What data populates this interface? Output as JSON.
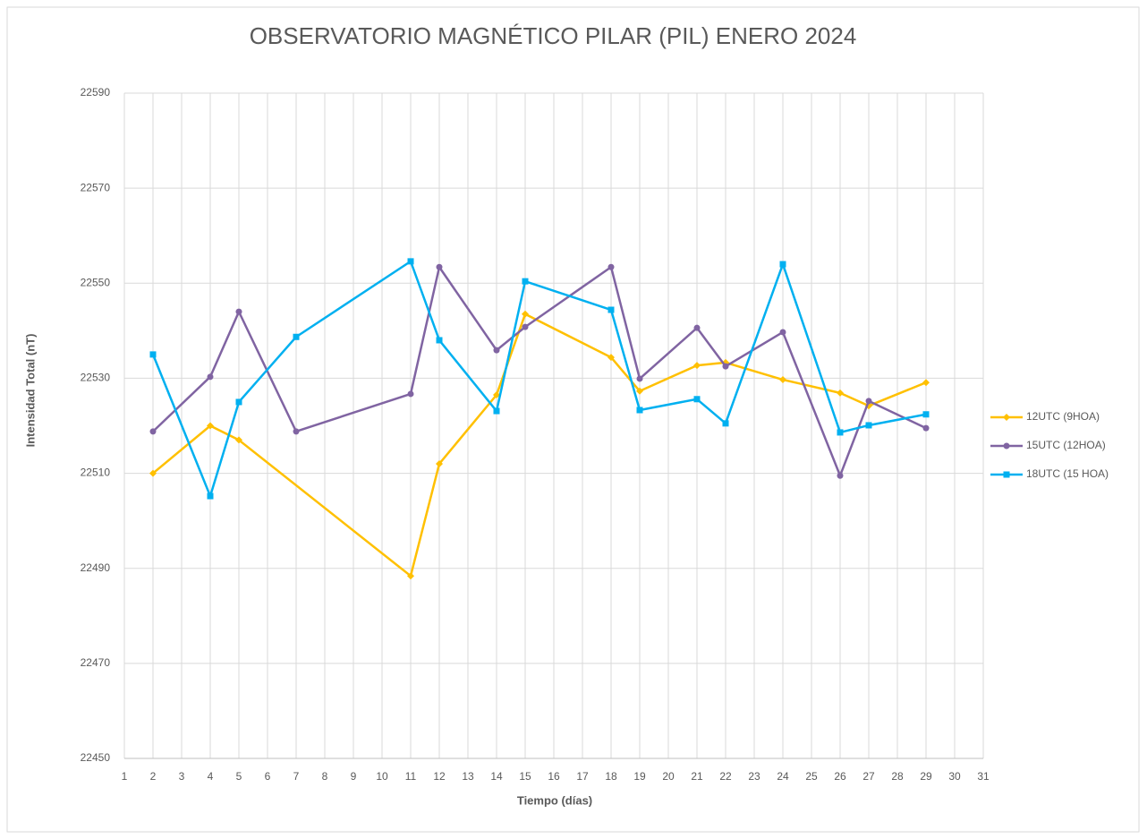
{
  "chart_data": {
    "type": "line",
    "title": "OBSERVATORIO MAGNÉTICO PILAR (PIL) ENERO 2024",
    "x_label": "Tiempo (días)",
    "y_label": "Intensidad Total (nT)",
    "xlim": [
      1,
      31
    ],
    "xticks": [
      1,
      2,
      3,
      4,
      5,
      6,
      7,
      8,
      9,
      10,
      11,
      12,
      13,
      14,
      15,
      16,
      17,
      18,
      19,
      20,
      21,
      22,
      23,
      24,
      25,
      26,
      27,
      28,
      29,
      30,
      31
    ],
    "ylim": [
      22450,
      22590
    ],
    "yticks": [
      22450,
      22470,
      22490,
      22510,
      22530,
      22550,
      22570,
      22590
    ],
    "grid": true,
    "legend": "right",
    "series": [
      {
        "name": "12UTC (9HOA)",
        "color": "#FFC000",
        "marker": "diamond",
        "x": [
          2,
          4,
          5,
          11,
          12,
          14,
          15,
          18,
          19,
          21,
          22,
          24,
          26,
          27,
          29
        ],
        "values": [
          22510,
          22520,
          22517,
          22488.4,
          22512,
          22526.5,
          22543.5,
          22534.4,
          22527.3,
          22532.7,
          22533.3,
          22529.7,
          22526.9,
          22524.2,
          22529.1
        ]
      },
      {
        "name": "15UTC (12HOA)",
        "color": "#8064A2",
        "marker": "circle",
        "x": [
          2,
          4,
          5,
          7,
          11,
          12,
          14,
          15,
          18,
          19,
          21,
          22,
          24,
          26,
          27,
          29
        ],
        "values": [
          22518.8,
          22530.3,
          22544,
          22518.8,
          22526.7,
          22553.4,
          22535.9,
          22540.8,
          22553.4,
          22529.9,
          22540.6,
          22532.5,
          22539.7,
          22509.5,
          22525.2,
          22519.5
        ]
      },
      {
        "name": "18UTC (15 HOA)",
        "color": "#00B0F0",
        "marker": "square",
        "x": [
          2,
          4,
          5,
          7,
          11,
          12,
          14,
          15,
          18,
          19,
          21,
          22,
          24,
          26,
          27,
          29
        ],
        "values": [
          22535,
          22505.2,
          22525,
          22538.7,
          22554.6,
          22538,
          22523.1,
          22550.4,
          22544.4,
          22523.3,
          22525.6,
          22520.5,
          22554,
          22518.6,
          22520.1,
          22522.4
        ]
      }
    ]
  }
}
